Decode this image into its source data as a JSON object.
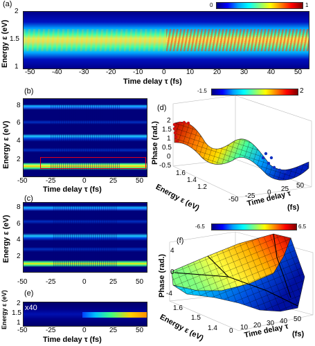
{
  "panels": {
    "a": {
      "label": "(a)",
      "colorbar": {
        "min": "0",
        "max": "1"
      },
      "ylabel": "Energy ε (eV)",
      "xlabel": "Time delay τ (fs)",
      "yticks": [
        "2",
        "1.5",
        "1"
      ],
      "xticks": [
        "-50",
        "-40",
        "-30",
        "-20",
        "-10",
        "0",
        "10",
        "20",
        "30",
        "40",
        "50"
      ]
    },
    "b": {
      "label": "(b)",
      "ylabel": "Energy ε (eV)",
      "xlabel": "Time delay τ (fs)",
      "yticks": [
        "8",
        "6",
        "4",
        "2"
      ],
      "xticks": [
        "-50",
        "-25",
        "0",
        "25",
        "50"
      ]
    },
    "c": {
      "label": "(c)",
      "ylabel": "Energy ε (eV)",
      "yticks": [
        "8",
        "6",
        "4",
        "2"
      ],
      "xticks": [
        "-50",
        "-25",
        "0",
        "25",
        "50"
      ]
    },
    "d": {
      "label": "(d)",
      "colorbar": {
        "min": "-1.5",
        "max": "2"
      },
      "zlabel": "Phase (rad.)",
      "zticks": [
        "2",
        "1.5",
        "1",
        "0.5",
        "0",
        "-0.5"
      ],
      "energy_label": "Energy ε (eV)",
      "energy_ticks": [
        "1.6",
        "1.4",
        "1.2"
      ],
      "time_label": "Time delay τ",
      "time_unit": "(fs)",
      "time_ticks": [
        "-50",
        "-25",
        "0",
        "25",
        "50"
      ]
    },
    "e": {
      "label": "(e)",
      "annotation": "x40",
      "ylabel": "Energy ε (eV)",
      "xlabel": "Time delay τ (fs)",
      "yticks": [
        "2",
        "1.5",
        "1"
      ],
      "xticks": [
        "-50",
        "-25",
        "0",
        "25",
        "50"
      ]
    },
    "f": {
      "label": "(f)",
      "colorbar": {
        "min": "-6.5",
        "max": "6.5"
      },
      "zlabel": "Phase (rad.)",
      "zticks": [
        "4",
        "0",
        "-4"
      ],
      "energy_label": "Energy ε (eV)",
      "energy_ticks": [
        "1.6",
        "1.5",
        "1.4"
      ],
      "time_label": "Time delay τ",
      "time_unit": "(fs)",
      "time_ticks": [
        "0",
        "10",
        "20",
        "30",
        "40",
        "50"
      ]
    }
  }
}
